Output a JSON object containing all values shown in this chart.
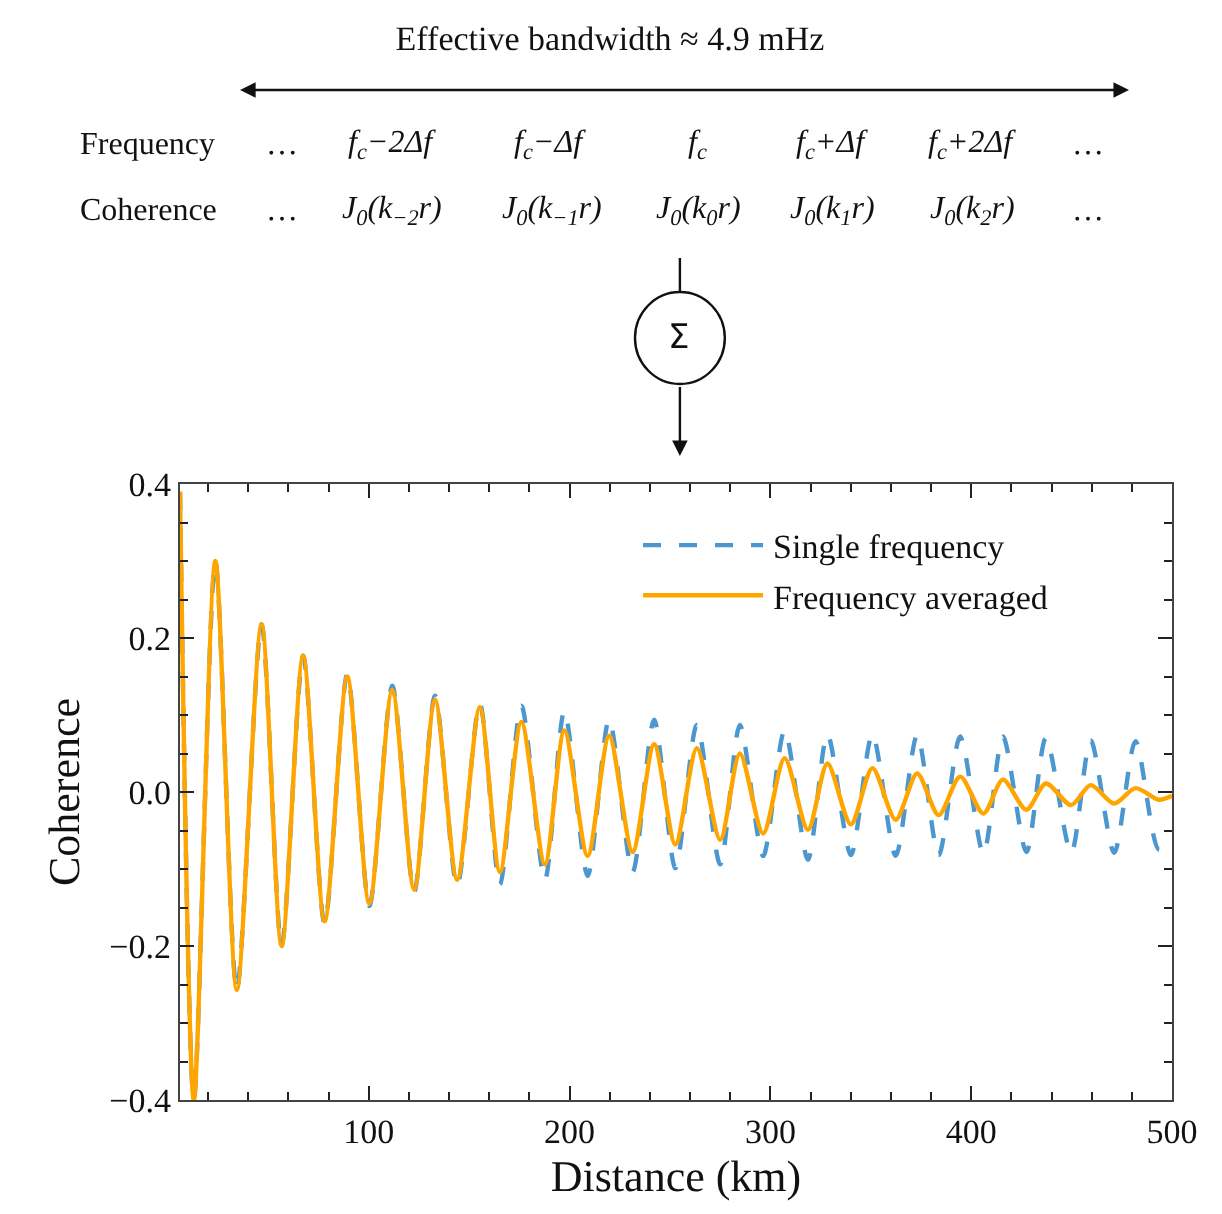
{
  "chart_data": {
    "type": "line",
    "title": "Effective bandwidth ≈ 4.9 mHz",
    "xlabel": "Distance (km)",
    "ylabel": "Coherence",
    "annotations": [
      "Frequency",
      "…",
      "f$_{c}$−2Δf",
      "f$_{c}$−Δf",
      "f$_{c}$",
      "f$_{c}$+Δf",
      "f$_{c}$+2Δf",
      "…",
      "Coherence",
      "…",
      "J$_{0}$(k$_{−2}$r)",
      "J$_{0}$(k$_{−1}$r)",
      "J$_{0}$(k$_{0}$r)",
      "J$_{0}$(k$_{1}$r)",
      "J$_{0}$(k$_{2}$r)",
      "…",
      "Σ"
    ],
    "x": [
      6,
      12.9,
      23.6,
      34.3,
      46.6,
      56.6,
      67.3,
      78.0,
      89.3,
      100.3,
      111.7,
      122.6,
      133.0,
      144.0,
      155.3,
      165.3,
      176.0,
      187.7,
      197.4,
      209.0,
      219.7,
      231.4,
      242.1,
      252.7,
      263.4,
      275.0,
      284.8,
      296.4,
      307.1,
      318.7,
      328.4,
      340.1,
      350.8,
      362.4,
      373.1,
      383.8,
      394.5,
      406.1,
      415.8,
      427.5,
      437.2,
      449.8,
      459.5,
      471.2,
      481.8,
      493.5,
      500
    ],
    "series": [
      {
        "name": "Single frequency",
        "color": "#4c97cf",
        "line_style": "dashed",
        "values": [
          0.39,
          -0.4,
          0.3,
          -0.257,
          0.218,
          -0.2,
          0.177,
          -0.171,
          0.153,
          -0.148,
          0.138,
          -0.13,
          0.125,
          -0.122,
          0.115,
          -0.12,
          0.112,
          -0.114,
          0.105,
          -0.109,
          0.094,
          -0.104,
          0.094,
          -0.099,
          0.087,
          -0.094,
          0.087,
          -0.083,
          0.08,
          -0.088,
          0.075,
          -0.082,
          0.075,
          -0.083,
          0.074,
          -0.082,
          0.072,
          -0.08,
          0.072,
          -0.078,
          0.07,
          -0.079,
          0.067,
          -0.079,
          0.066,
          -0.075,
          -0.06
        ]
      },
      {
        "name": "Frequency averaged",
        "color": "#ffa500",
        "line_style": "solid",
        "values": [
          0.39,
          -0.4,
          0.3,
          -0.257,
          0.218,
          -0.2,
          0.177,
          -0.168,
          0.15,
          -0.145,
          0.133,
          -0.127,
          0.12,
          -0.114,
          0.11,
          -0.104,
          0.091,
          -0.094,
          0.08,
          -0.083,
          0.073,
          -0.078,
          0.062,
          -0.068,
          0.057,
          -0.062,
          0.05,
          -0.054,
          0.044,
          -0.049,
          0.037,
          -0.042,
          0.031,
          -0.036,
          0.024,
          -0.03,
          0.02,
          -0.028,
          0.016,
          -0.023,
          0.011,
          -0.017,
          0.009,
          -0.015,
          0.005,
          -0.01,
          -0.005
        ]
      }
    ],
    "xlim": [
      6,
      500
    ],
    "ylim": [
      -0.4,
      0.4
    ],
    "xticks": [
      {
        "value": 20,
        "label": null
      },
      {
        "value": 40,
        "label": null
      },
      {
        "value": 60,
        "label": null
      },
      {
        "value": 80,
        "label": null
      },
      100,
      {
        "value": 120,
        "label": null
      },
      {
        "value": 140,
        "label": null
      },
      {
        "value": 160,
        "label": null
      },
      {
        "value": 180,
        "label": null
      },
      200,
      {
        "value": 220,
        "label": null
      },
      {
        "value": 240,
        "label": null
      },
      {
        "value": 260,
        "label": null
      },
      {
        "value": 280,
        "label": null
      },
      300,
      {
        "value": 320,
        "label": null
      },
      {
        "value": 340,
        "label": null
      },
      {
        "value": 360,
        "label": null
      },
      {
        "value": 380,
        "label": null
      },
      400,
      {
        "value": 420,
        "label": null
      },
      {
        "value": 440,
        "label": null
      },
      {
        "value": 460,
        "label": null
      },
      {
        "value": 480,
        "label": null
      },
      500
    ],
    "yticks": [
      {
        "value": -0.4,
        "label": "−0.4"
      },
      {
        "value": -0.35,
        "label": null
      },
      {
        "value": -0.3,
        "label": null
      },
      {
        "value": -0.25,
        "label": null
      },
      {
        "value": -0.2,
        "label": "−0.2"
      },
      {
        "value": -0.15,
        "label": null
      },
      {
        "value": -0.1,
        "label": null
      },
      {
        "value": -0.05,
        "label": null
      },
      {
        "value": 0,
        "label": "0.0"
      },
      {
        "value": 0.05,
        "label": null
      },
      {
        "value": 0.1,
        "label": null
      },
      {
        "value": 0.15,
        "label": null
      },
      0.2,
      {
        "value": 0.25,
        "label": null
      },
      {
        "value": 0.3,
        "label": null
      },
      {
        "value": 0.35,
        "label": null
      },
      0.4
    ],
    "legend": "top right",
    "marker": "none"
  }
}
